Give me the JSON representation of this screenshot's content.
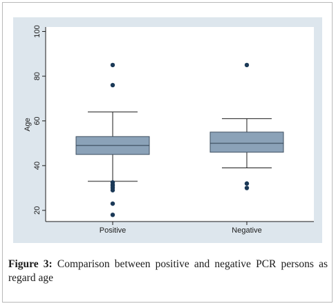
{
  "caption": {
    "label": "Figure 3:",
    "text": " Comparison between positive and negative PCR persons as regard age"
  },
  "colors": {
    "panel_background": "#dde6ed",
    "box_fill": "#8ba2b8",
    "outlier": "#1b3957",
    "line": "#1a1a1a"
  },
  "chart_data": {
    "type": "box",
    "title": "",
    "xlabel": "",
    "ylabel": "Age",
    "ylim": [
      15,
      102
    ],
    "yticks": [
      20,
      40,
      60,
      80,
      100
    ],
    "grid": false,
    "legend": "none",
    "categories": [
      "Positive",
      "Negative"
    ],
    "boxes": [
      {
        "category": "Positive",
        "whisker_low": 33,
        "q1": 45,
        "median": 49,
        "q3": 53,
        "whisker_high": 64,
        "outliers": [
          85,
          76,
          32.5,
          31.5,
          31,
          30,
          29,
          23,
          18
        ]
      },
      {
        "category": "Negative",
        "whisker_low": 39,
        "q1": 46,
        "median": 50,
        "q3": 55,
        "whisker_high": 61,
        "outliers": [
          85,
          32,
          30
        ]
      }
    ]
  }
}
